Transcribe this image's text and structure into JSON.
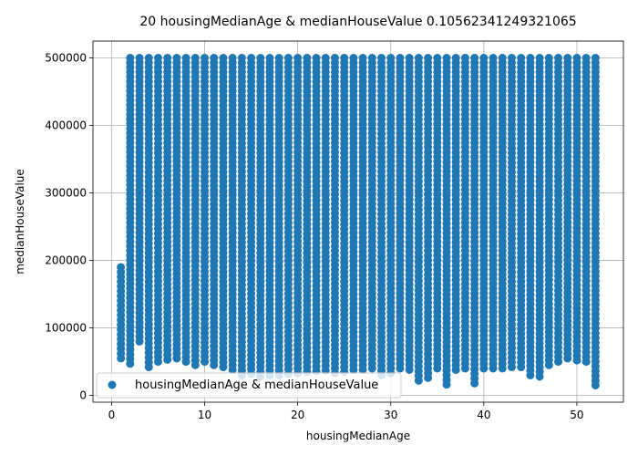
{
  "chart_data": {
    "type": "scatter",
    "title": "20 housingMedianAge & medianHouseValue 0.10562341249321065",
    "xlabel": "housingMedianAge",
    "ylabel": "medianHouseValue",
    "xlim": [
      -2,
      55
    ],
    "ylim": [
      -10000,
      525000
    ],
    "xticks": [
      0,
      10,
      20,
      30,
      40,
      50
    ],
    "yticks": [
      0,
      100000,
      200000,
      300000,
      400000,
      500000
    ],
    "grid": true,
    "legend": {
      "placement": "lower-left",
      "entries": [
        "housingMedianAge & medianHouseValue"
      ]
    },
    "colors": {
      "series": "#1f77b4"
    },
    "series": [
      {
        "name": "housingMedianAge & medianHouseValue",
        "x_values": [
          1,
          2,
          3,
          4,
          5,
          6,
          7,
          8,
          9,
          10,
          11,
          12,
          13,
          14,
          15,
          16,
          17,
          18,
          19,
          20,
          21,
          22,
          23,
          24,
          25,
          26,
          27,
          28,
          29,
          30,
          31,
          32,
          33,
          34,
          35,
          36,
          37,
          38,
          39,
          40,
          41,
          42,
          43,
          44,
          45,
          46,
          47,
          48,
          49,
          50,
          51,
          52
        ],
        "y_min": [
          55000,
          47000,
          80000,
          42000,
          50000,
          53000,
          55000,
          50000,
          45000,
          50000,
          45000,
          42000,
          38000,
          30000,
          32000,
          28000,
          30000,
          30000,
          32000,
          33000,
          35000,
          36000,
          37000,
          33000,
          35000,
          38000,
          38000,
          40000,
          30000,
          33000,
          40000,
          38000,
          22000,
          26000,
          40000,
          16000,
          38000,
          40000,
          18000,
          40000,
          40000,
          40000,
          42000,
          42000,
          30000,
          28000,
          45000,
          50000,
          55000,
          52000,
          50000,
          15000
        ],
        "y_max": [
          190000,
          500000,
          500000,
          500000,
          500000,
          500000,
          500000,
          500000,
          500000,
          500000,
          500000,
          500000,
          500000,
          500000,
          500000,
          500000,
          500000,
          500000,
          500000,
          500000,
          500000,
          500000,
          500000,
          500000,
          500000,
          500000,
          500000,
          500000,
          500000,
          500000,
          500000,
          500000,
          500000,
          500000,
          500000,
          500000,
          500000,
          500000,
          500000,
          500000,
          500000,
          500000,
          500000,
          500000,
          500000,
          500000,
          500000,
          500000,
          500000,
          500000,
          500000,
          500000
        ]
      }
    ]
  }
}
